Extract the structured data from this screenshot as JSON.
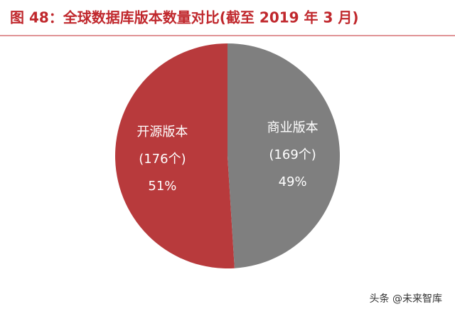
{
  "chart_data": {
    "type": "pie",
    "title": "图 48：全球数据库版本数量对比(截至 2019 年 3 月)",
    "categories": [
      "开源版本",
      "商业版本"
    ],
    "values": [
      51,
      49
    ],
    "value_labels": [
      "51%",
      "49%"
    ],
    "count_labels": [
      "(176个)",
      "(169个)"
    ],
    "colors": [
      "#b83a3c",
      "#7f7f7f"
    ]
  },
  "watermark": "头条 @未来智库"
}
